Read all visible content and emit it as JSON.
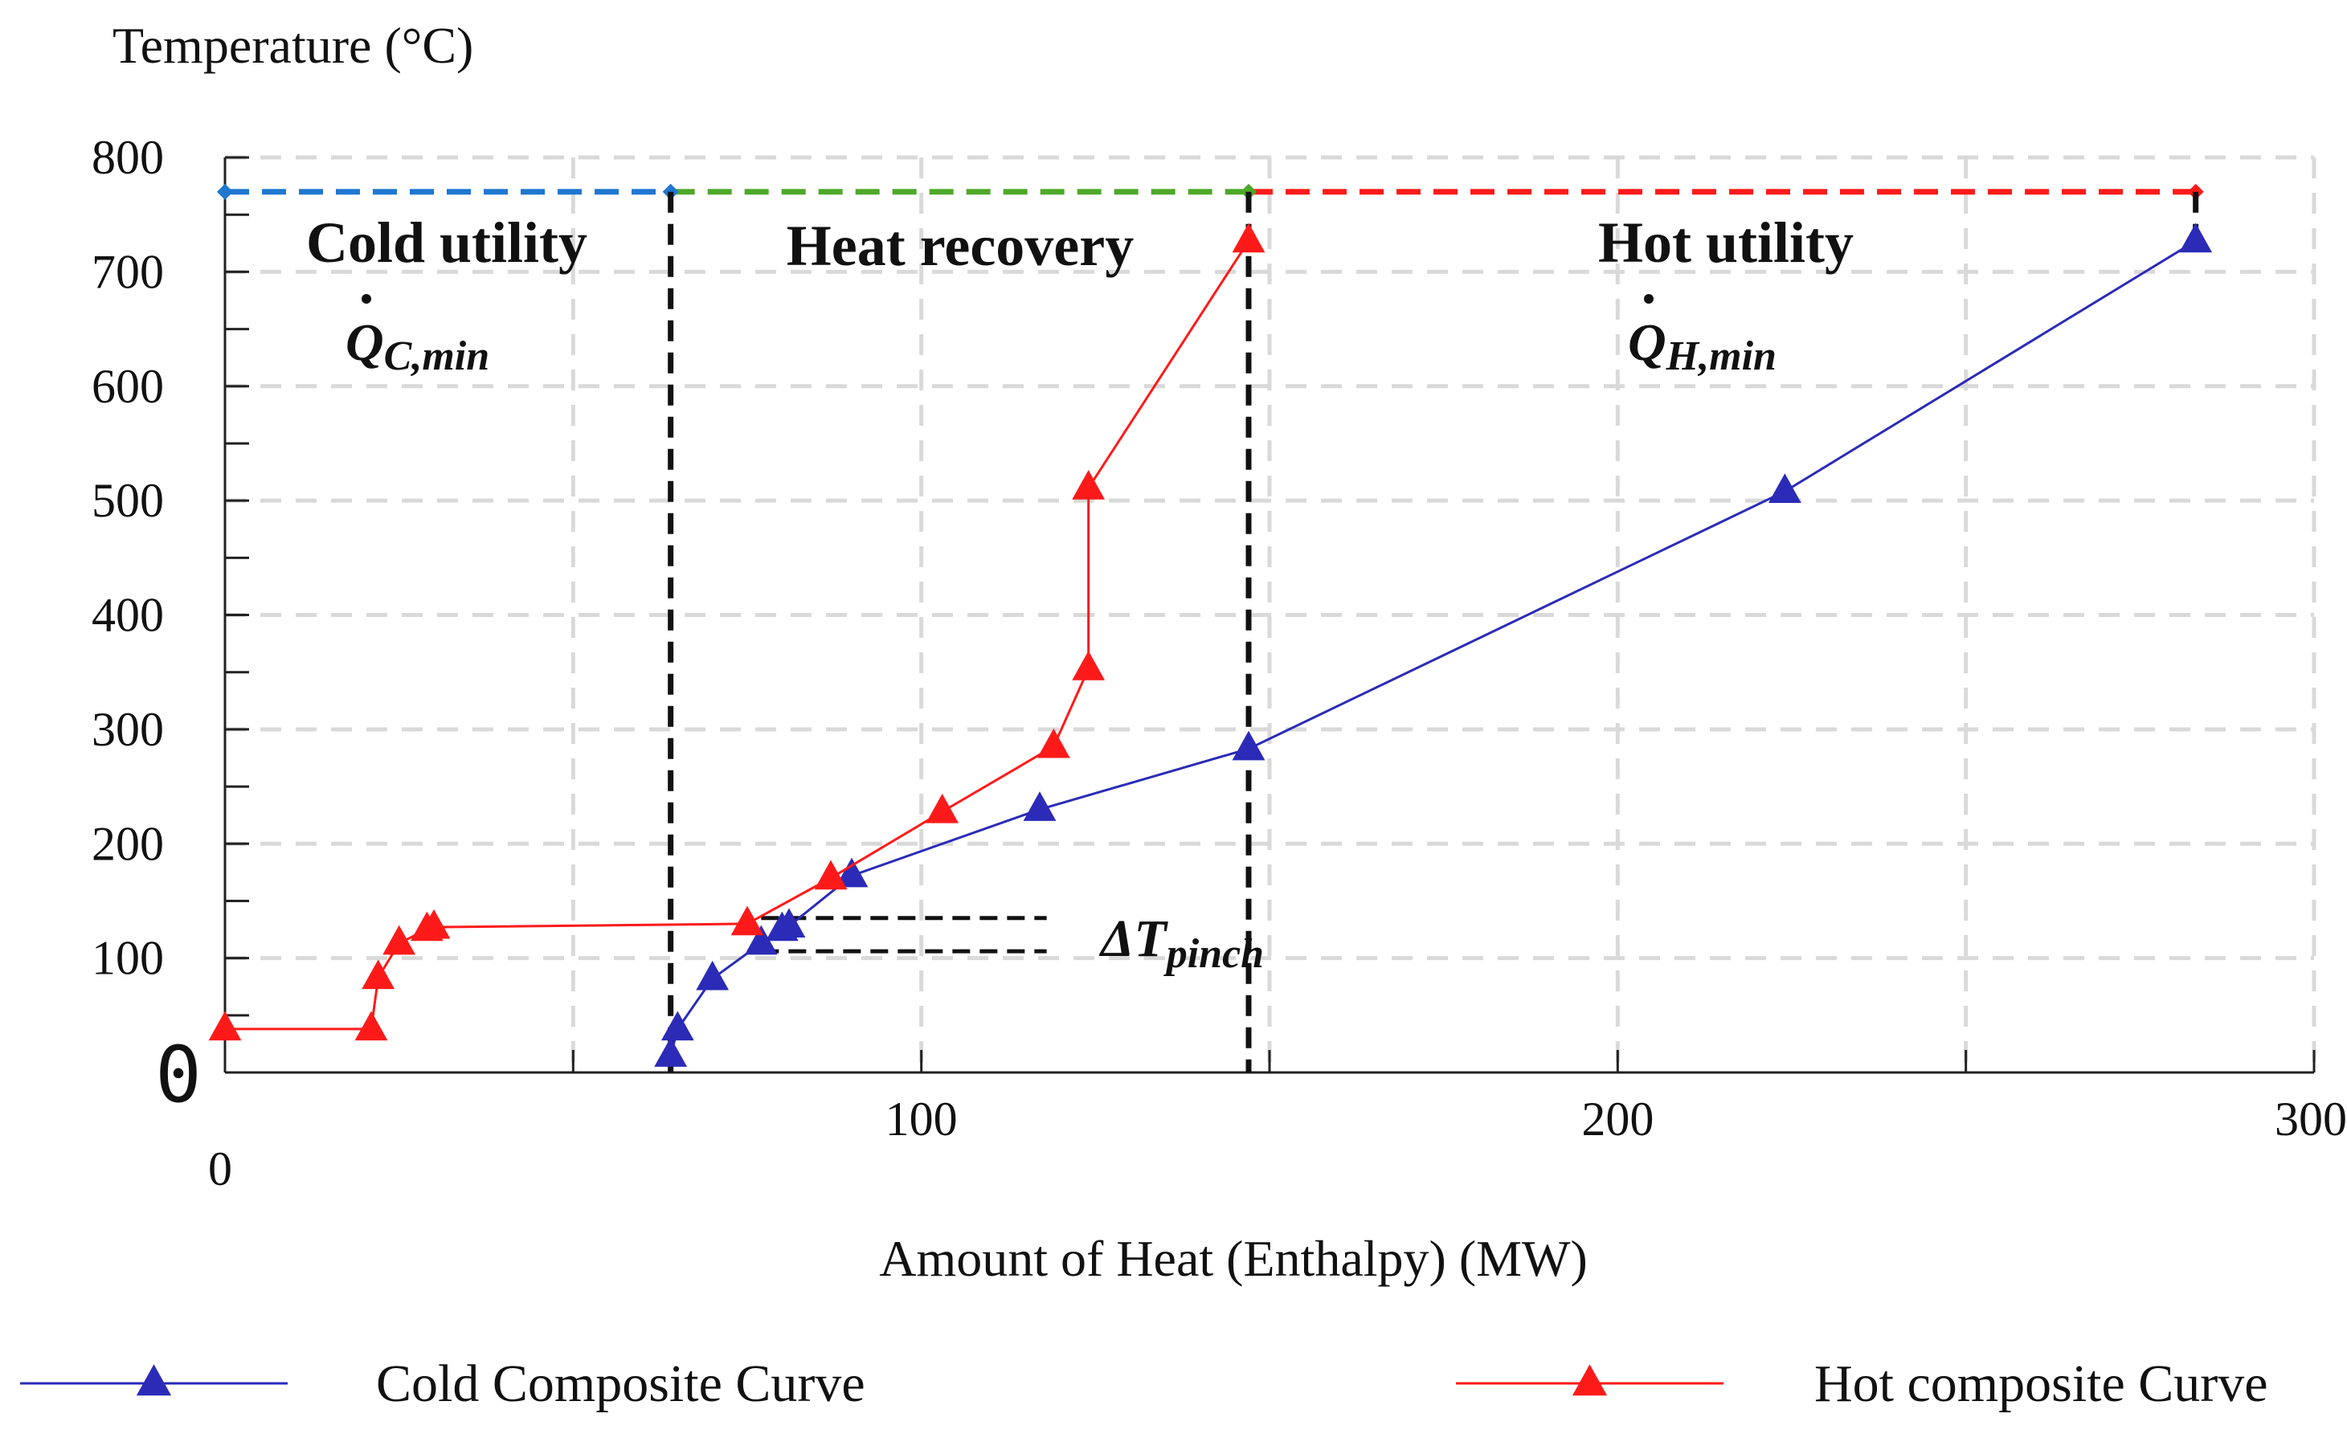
{
  "chart_data": {
    "type": "line",
    "title": "",
    "xlabel": "Amount of Heat (Enthalpy) (MW)",
    "ylabel": "Temperature (°C)",
    "xlim": [
      0,
      300
    ],
    "ylim": [
      0,
      800
    ],
    "xticks": [
      0,
      100,
      200,
      300
    ],
    "yticks": [
      0,
      100,
      200,
      300,
      400,
      500,
      600,
      700,
      800
    ],
    "y_zero_label": "0",
    "grid": true,
    "grid_style": "dashed",
    "legend_position": "bottom",
    "series": [
      {
        "name": "Cold Composite Curve",
        "color": "#2b2bb8",
        "marker": "triangle",
        "x": [
          64,
          65,
          70,
          77,
          80,
          81,
          90,
          117,
          147,
          224,
          283
        ],
        "y": [
          15,
          38,
          82,
          113,
          125,
          128,
          172,
          230,
          283,
          508,
          727
        ]
      },
      {
        "name": "Hot composite Curve",
        "color": "#ff1a1a",
        "marker": "triangle",
        "x": [
          0,
          21,
          22,
          25,
          29,
          30,
          75,
          87,
          103,
          119,
          124,
          124,
          147
        ],
        "y": [
          38,
          38,
          83,
          113,
          125,
          127,
          130,
          170,
          228,
          285,
          353,
          511,
          727
        ]
      }
    ],
    "utility_line": {
      "y": 770,
      "segments": [
        {
          "from": 0,
          "to": 64,
          "color": "#1f77d0"
        },
        {
          "from": 64,
          "to": 147,
          "color": "#4ea82a"
        },
        {
          "from": 147,
          "to": 283,
          "color": "#ff1a1a"
        }
      ]
    },
    "region_dividers_x": [
      64,
      147
    ],
    "pinch_lines": {
      "y": [
        135,
        106
      ],
      "x_from": 77,
      "x_to": 118
    },
    "annotations": {
      "cold_utility": "Cold utility",
      "cold_utility_symbol": "Q",
      "cold_utility_subscript": "C,min",
      "heat_recovery": "Heat recovery",
      "hot_utility": "Hot utility",
      "hot_utility_symbol": "Q",
      "hot_utility_subscript": "H,min",
      "pinch_symbol": "ΔT",
      "pinch_subscript": "pinch"
    }
  }
}
